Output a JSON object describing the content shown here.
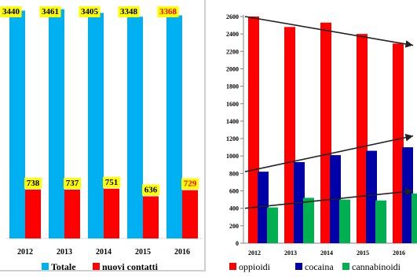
{
  "chart_data": [
    {
      "type": "bar",
      "categories": [
        "2012",
        "2013",
        "2014",
        "2015",
        "2016"
      ],
      "series": [
        {
          "name": "Totale",
          "values": [
            3440,
            3461,
            3405,
            3348,
            3368
          ],
          "color": "#00b0f0"
        },
        {
          "name": "nuovi contatti",
          "values": [
            738,
            737,
            751,
            636,
            729
          ],
          "color": "#ff0000"
        }
      ],
      "data_labels": {
        "Totale": [
          "3440",
          "3461",
          "3405",
          "3348",
          "3368"
        ],
        "nuovi contatti": [
          "738",
          "737",
          "751",
          "636",
          "729"
        ]
      },
      "label_box_color": "#ffff00",
      "highlight_label_color": "#ff0000",
      "highlighted_labels": [
        [
          "Totale",
          4
        ],
        [
          "nuovi contatti",
          4
        ]
      ],
      "ylim": [
        0,
        3600
      ],
      "legend_position": "bottom",
      "grid": false
    },
    {
      "type": "bar",
      "categories": [
        "2012",
        "2013",
        "2014",
        "2015",
        "2016"
      ],
      "series": [
        {
          "name": "oppioidi",
          "values": [
            2600,
            2480,
            2530,
            2400,
            2290
          ],
          "color": "#ff0000"
        },
        {
          "name": "cocaina",
          "values": [
            820,
            930,
            1010,
            1060,
            1100
          ],
          "color": "#0000a8"
        },
        {
          "name": "cannabinoidi",
          "values": [
            410,
            520,
            500,
            490,
            570
          ],
          "color": "#00b050"
        }
      ],
      "y_ticks": [
        "0",
        "200",
        "400",
        "600",
        "800",
        "1000",
        "1200",
        "1400",
        "1600",
        "1800",
        "2000",
        "2200",
        "2400",
        "2600"
      ],
      "ylim": [
        0,
        2600
      ],
      "trend_arrows": [
        {
          "series": "oppioidi",
          "from": 2600,
          "to": 2270
        },
        {
          "series": "cocaina",
          "from": 820,
          "to": 1230
        },
        {
          "series": "cannabinoidi",
          "from": 400,
          "to": 600
        }
      ],
      "legend_position": "bottom",
      "grid": false
    }
  ]
}
